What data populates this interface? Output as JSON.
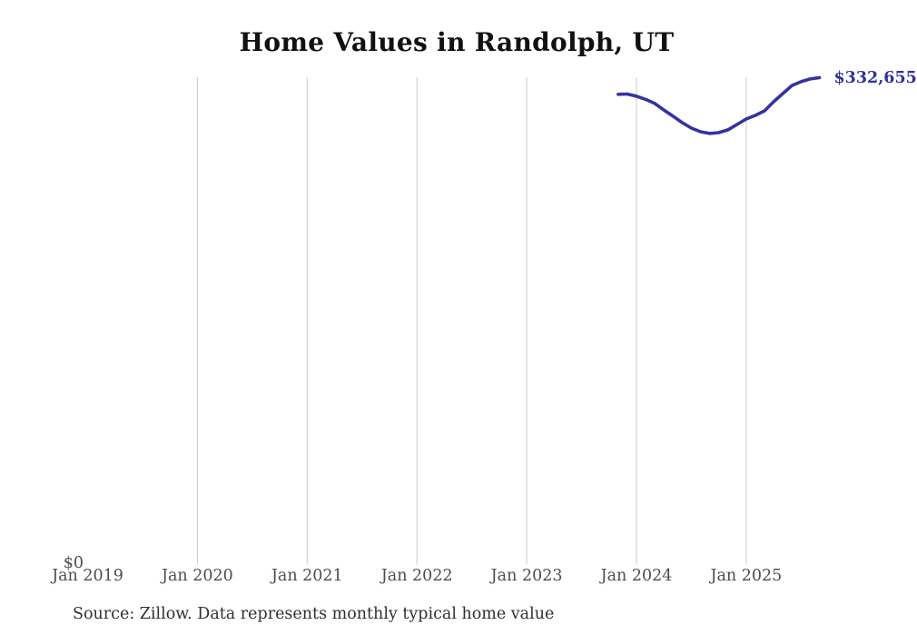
{
  "chart_data": {
    "type": "line",
    "title": "Home Values in Randolph, UT",
    "xlabel": "",
    "ylabel": "",
    "source_note": "Source: Zillow. Data represents monthly typical home value",
    "legend": "none",
    "grid": "vertical-only",
    "ylim": [
      0,
      333000
    ],
    "y_ticks": [
      "$0"
    ],
    "x_ticks": [
      {
        "label": "Jan 2019",
        "gridline": false
      },
      {
        "label": "Jan 2020",
        "gridline": true
      },
      {
        "label": "Jan 2021",
        "gridline": true
      },
      {
        "label": "Jan 2022",
        "gridline": true
      },
      {
        "label": "Jan 2023",
        "gridline": true
      },
      {
        "label": "Jan 2024",
        "gridline": true
      },
      {
        "label": "Jan 2025",
        "gridline": true
      }
    ],
    "end_label": "$332,655",
    "line_color": "#34339e",
    "end_label_color": "#32319b",
    "grid_color": "#cccccc",
    "axis_label_color": "#4d4d4d",
    "series": [
      {
        "name": "Monthly typical home value",
        "x": [
          "2023-11",
          "2023-12",
          "2024-01",
          "2024-02",
          "2024-03",
          "2024-04",
          "2024-05",
          "2024-06",
          "2024-07",
          "2024-08",
          "2024-09",
          "2024-10",
          "2024-11",
          "2024-12",
          "2025-01",
          "2025-02",
          "2025-03",
          "2025-04",
          "2025-05",
          "2025-06",
          "2025-07",
          "2025-08",
          "2025-09"
        ],
        "values": [
          321200,
          321400,
          319900,
          317700,
          314900,
          310400,
          306100,
          301700,
          297900,
          295400,
          294200,
          294800,
          296700,
          300400,
          304200,
          306700,
          309800,
          316100,
          321700,
          327300,
          329900,
          331800,
          332655
        ]
      }
    ]
  }
}
